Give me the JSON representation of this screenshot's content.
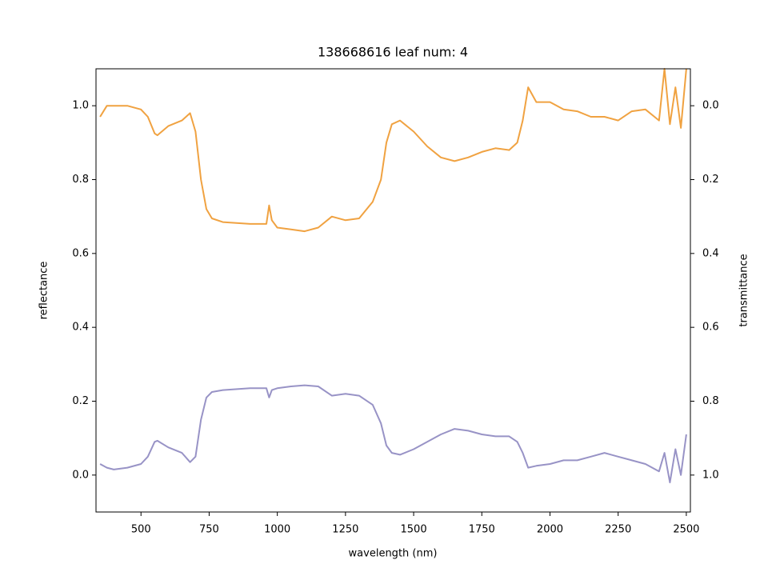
{
  "chart_data": {
    "type": "line",
    "title": "138668616 leaf num: 4",
    "x_label": "wavelength (nm)",
    "y_label": "reflectance",
    "y2_label": "transmittance",
    "x": [
      350,
      375,
      400,
      450,
      500,
      525,
      550,
      560,
      600,
      650,
      680,
      700,
      720,
      740,
      760,
      800,
      900,
      960,
      970,
      980,
      1000,
      1050,
      1100,
      1150,
      1200,
      1250,
      1300,
      1350,
      1380,
      1400,
      1420,
      1450,
      1500,
      1550,
      1600,
      1650,
      1700,
      1750,
      1800,
      1850,
      1880,
      1900,
      1920,
      1950,
      2000,
      2050,
      2100,
      2150,
      2200,
      2250,
      2300,
      2350,
      2400,
      2420,
      2440,
      2460,
      2480,
      2500
    ],
    "series": [
      {
        "name": "reflectance",
        "color": "#9893c6",
        "axis": "y",
        "values": [
          0.03,
          0.02,
          0.015,
          0.02,
          0.03,
          0.05,
          0.09,
          0.093,
          0.075,
          0.06,
          0.035,
          0.05,
          0.15,
          0.21,
          0.225,
          0.23,
          0.235,
          0.235,
          0.21,
          0.23,
          0.235,
          0.24,
          0.243,
          0.24,
          0.215,
          0.22,
          0.215,
          0.19,
          0.14,
          0.08,
          0.06,
          0.055,
          0.07,
          0.09,
          0.11,
          0.125,
          0.12,
          0.11,
          0.105,
          0.105,
          0.09,
          0.06,
          0.02,
          0.025,
          0.03,
          0.04,
          0.04,
          0.05,
          0.06,
          0.05,
          0.04,
          0.03,
          0.01,
          0.06,
          -0.02,
          0.07,
          0.0,
          0.11
        ]
      },
      {
        "name": "transmittance",
        "color": "#f0a241",
        "axis": "y2",
        "values": [
          0.03,
          0.0,
          0.0,
          0.0,
          0.01,
          0.03,
          0.075,
          0.08,
          0.055,
          0.04,
          0.02,
          0.07,
          0.2,
          0.28,
          0.305,
          0.315,
          0.32,
          0.32,
          0.27,
          0.31,
          0.33,
          0.335,
          0.34,
          0.33,
          0.3,
          0.31,
          0.305,
          0.26,
          0.2,
          0.1,
          0.05,
          0.04,
          0.07,
          0.11,
          0.14,
          0.15,
          0.14,
          0.125,
          0.115,
          0.12,
          0.1,
          0.04,
          -0.05,
          -0.01,
          -0.01,
          0.01,
          0.015,
          0.03,
          0.03,
          0.04,
          0.015,
          0.01,
          0.04,
          -0.1,
          0.05,
          -0.05,
          0.06,
          -0.1
        ]
      }
    ],
    "xlim": [
      335,
      2515
    ],
    "xticks": [
      500,
      750,
      1000,
      1250,
      1500,
      1750,
      2000,
      2250,
      2500
    ],
    "ylim": [
      -0.1,
      1.1
    ],
    "yticks": [
      {
        "value": 0,
        "label": "0.0"
      },
      0.2,
      0.4,
      0.6,
      0.8,
      {
        "value": 1,
        "label": "1.0"
      }
    ],
    "y2lim": [
      1.1,
      -0.1
    ],
    "y2ticks": [
      {
        "value": 0,
        "label": "0.0"
      },
      0.2,
      0.4,
      0.6,
      0.8,
      {
        "value": 1,
        "label": "1.0"
      }
    ]
  }
}
